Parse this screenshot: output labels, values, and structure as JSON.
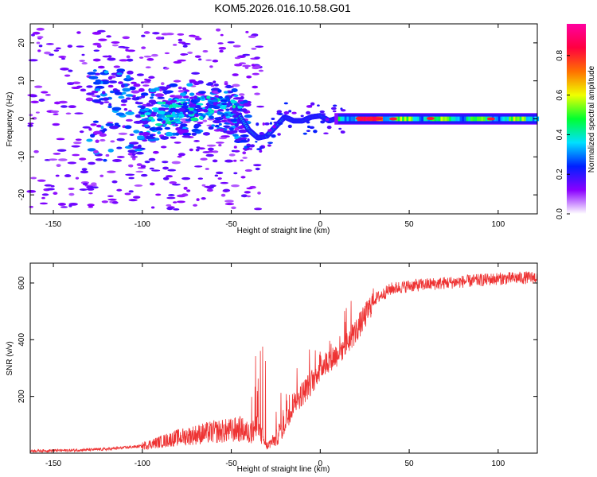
{
  "title": "KOM5.2026.016.10.58.G01",
  "chart_data": [
    {
      "type": "heatmap",
      "name": "spectrogram",
      "xlabel": "Height of straight line (km)",
      "ylabel": "Frequency (Hz)",
      "xlim": [
        -163,
        122
      ],
      "ylim": [
        -25,
        25
      ],
      "xticks": [
        -150,
        -100,
        -50,
        0,
        50,
        100
      ],
      "yticks": [
        -20,
        -10,
        0,
        10,
        20
      ],
      "colorbar": {
        "label": "Normalized spectral amplitude",
        "range": [
          0,
          0.96
        ],
        "ticks": [
          0.0,
          0.2,
          0.4,
          0.6,
          0.8
        ],
        "tick_labels": [
          "0.0",
          "0.2",
          "0.4",
          "0.6",
          "0.8"
        ],
        "colors": [
          "#ffffff",
          "#8a00ff",
          "#0020ff",
          "#00e0ff",
          "#00ff30",
          "#f0ff00",
          "#ff7000",
          "#ff0040",
          "#ff00a0"
        ]
      },
      "ridge": [
        {
          "x": -100,
          "y": 1.0
        },
        {
          "x": -80,
          "y": 2.0
        },
        {
          "x": -65,
          "y": 3.0
        },
        {
          "x": -52,
          "y": 3.0
        },
        {
          "x": -45,
          "y": 0.5
        },
        {
          "x": -40,
          "y": -3.0
        },
        {
          "x": -35,
          "y": -5.0
        },
        {
          "x": -30,
          "y": -4.5
        },
        {
          "x": -25,
          "y": -2.0
        },
        {
          "x": -20,
          "y": 0.5
        },
        {
          "x": -15,
          "y": -0.5
        },
        {
          "x": -10,
          "y": -0.5
        },
        {
          "x": -5,
          "y": 0.5
        },
        {
          "x": 0,
          "y": 0.8
        },
        {
          "x": 5,
          "y": -0.5
        },
        {
          "x": 10,
          "y": 0.2
        },
        {
          "x": 20,
          "y": 0.0
        },
        {
          "x": 120,
          "y": 0.0
        }
      ]
    },
    {
      "type": "line",
      "name": "snr",
      "xlabel": "Height of straight line (km)",
      "ylabel": "SNR (v/v)",
      "xlim": [
        -163,
        122
      ],
      "ylim": [
        0,
        670
      ],
      "xticks": [
        -150,
        -100,
        -50,
        0,
        50,
        100
      ],
      "yticks": [
        200,
        400,
        600
      ],
      "color": "#ee3333",
      "series": [
        {
          "name": "SNR",
          "x": [
            -163,
            -140,
            -120,
            -100,
            -90,
            -80,
            -70,
            -60,
            -50,
            -45,
            -40,
            -35,
            -30,
            -25,
            -20,
            -15,
            -10,
            -5,
            0,
            5,
            10,
            15,
            20,
            25,
            30,
            40,
            50,
            60,
            80,
            100,
            122
          ],
          "y": [
            8,
            10,
            14,
            25,
            40,
            55,
            65,
            75,
            80,
            85,
            70,
            90,
            25,
            50,
            110,
            180,
            210,
            250,
            300,
            330,
            350,
            390,
            430,
            480,
            540,
            580,
            590,
            595,
            605,
            615,
            620
          ]
        }
      ]
    }
  ]
}
